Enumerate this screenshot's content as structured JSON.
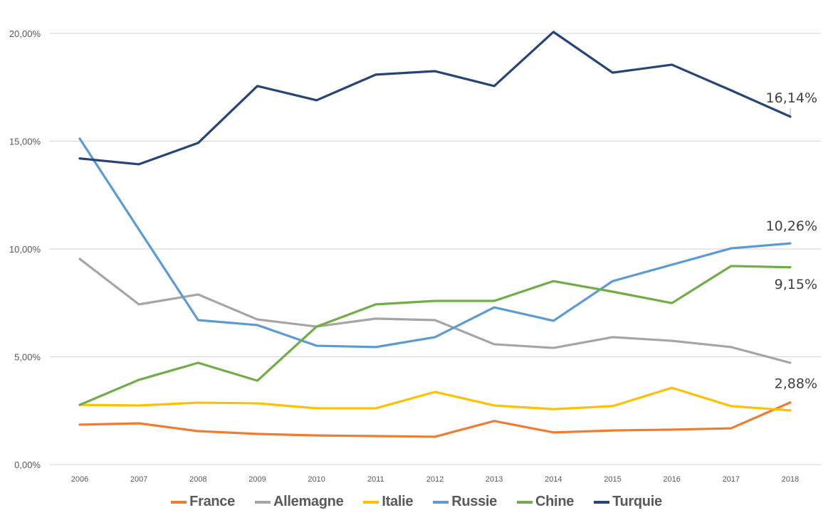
{
  "chart_data": {
    "type": "line",
    "title": "",
    "xlabel": "",
    "ylabel": "",
    "x": [
      "2006",
      "2007",
      "2008",
      "2009",
      "2010",
      "2011",
      "2012",
      "2013",
      "2014",
      "2015",
      "2016",
      "2017",
      "2018"
    ],
    "ylim": [
      0,
      20
    ],
    "yticks": [
      0,
      5,
      10,
      15,
      20
    ],
    "ytick_labels": [
      "0,00%",
      "5,00%",
      "10,00%",
      "15,00%",
      "20,00%"
    ],
    "grid": true,
    "legend_position": "bottom",
    "series": [
      {
        "name": "France",
        "color": "#ED7D31",
        "values": [
          1.85,
          1.91,
          1.55,
          1.42,
          1.35,
          1.32,
          1.29,
          2.02,
          1.49,
          1.58,
          1.62,
          1.68,
          2.88
        ],
        "end_label": "2,88%"
      },
      {
        "name": "Allemagne",
        "color": "#A5A5A5",
        "values": [
          9.54,
          7.43,
          7.89,
          6.73,
          6.4,
          6.77,
          6.7,
          5.58,
          5.41,
          5.91,
          5.74,
          5.45,
          4.72
        ],
        "end_label": ""
      },
      {
        "name": "Italie",
        "color": "#FFC000",
        "values": [
          2.77,
          2.74,
          2.87,
          2.84,
          2.61,
          2.61,
          3.37,
          2.74,
          2.57,
          2.71,
          3.56,
          2.71,
          2.51
        ],
        "end_label": ""
      },
      {
        "name": "Russie",
        "color": "#5B9BD5",
        "values": [
          15.12,
          10.9,
          6.7,
          6.47,
          5.51,
          5.45,
          5.91,
          7.29,
          6.67,
          8.51,
          9.27,
          10.03,
          10.26
        ],
        "end_label": "10,26%"
      },
      {
        "name": "Chine",
        "color": "#70AD47",
        "values": [
          2.77,
          3.93,
          4.72,
          3.89,
          6.4,
          7.43,
          7.59,
          7.59,
          8.51,
          8.02,
          7.49,
          9.21,
          9.15
        ],
        "end_label": "9,15%"
      },
      {
        "name": "Turquie",
        "color": "#264478",
        "values": [
          14.2,
          13.93,
          14.92,
          17.56,
          16.9,
          18.09,
          18.25,
          17.56,
          20.07,
          18.18,
          18.55,
          17.36,
          16.14
        ],
        "end_label": "16,14%"
      }
    ]
  }
}
